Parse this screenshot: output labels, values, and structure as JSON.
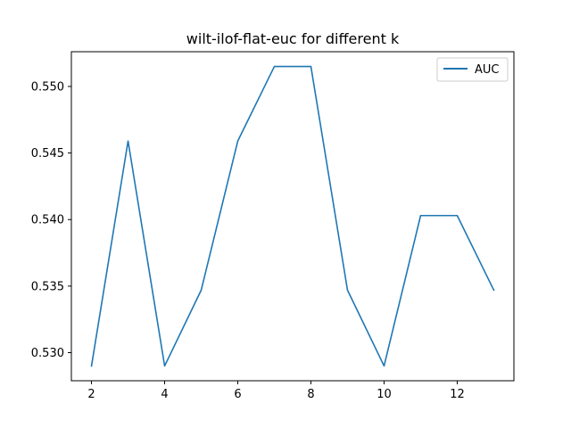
{
  "chart_data": {
    "type": "line",
    "title": "wilt-ilof-flat-euc for different k",
    "xlabel": "",
    "ylabel": "",
    "x": [
      2,
      3,
      4,
      5,
      6,
      7,
      8,
      9,
      10,
      11,
      12,
      13
    ],
    "series": [
      {
        "name": "AUC",
        "color": "#1f77b4",
        "values": [
          0.529,
          0.5459,
          0.529,
          0.5347,
          0.5459,
          0.5515,
          0.5515,
          0.5347,
          0.529,
          0.5403,
          0.5403,
          0.5347
        ]
      }
    ],
    "xlim": [
      1.45,
      13.55
    ],
    "ylim": [
      0.52789,
      0.55261
    ],
    "xticks": [
      2,
      4,
      6,
      8,
      10,
      12
    ],
    "xtick_labels": [
      "2",
      "4",
      "6",
      "8",
      "10",
      "12"
    ],
    "yticks": [
      0.53,
      0.535,
      0.54,
      0.545,
      0.55
    ],
    "ytick_labels": [
      "0.530",
      "0.535",
      "0.540",
      "0.545",
      "0.550"
    ],
    "grid": false,
    "legend_position": "upper right"
  }
}
